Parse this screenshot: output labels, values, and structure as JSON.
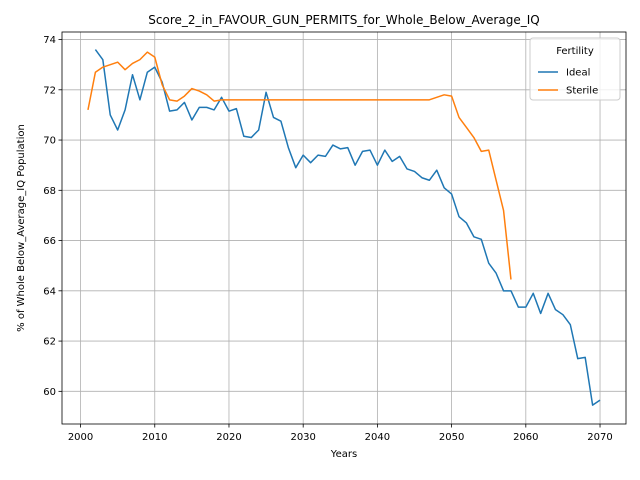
{
  "chart_data": {
    "type": "line",
    "title": "Score_2_in_FAVOUR_GUN_PERMITS_for_Whole_Below_Average_IQ",
    "xlabel": "Years",
    "ylabel": "% of Whole Below_Average_IQ Population",
    "xlim": [
      1997.5,
      2073.5
    ],
    "ylim": [
      58.7,
      74.3
    ],
    "xticks": [
      2000,
      2010,
      2020,
      2030,
      2040,
      2050,
      2060,
      2070
    ],
    "yticks": [
      60,
      62,
      64,
      66,
      68,
      70,
      72,
      74
    ],
    "grid": true,
    "legend": {
      "title": "Fertility",
      "placement": "top-right"
    },
    "series": [
      {
        "name": "Ideal",
        "color": "#1f77b4",
        "points": [
          [
            2002,
            73.6
          ],
          [
            2003,
            73.2
          ],
          [
            2004,
            71.0
          ],
          [
            2005,
            70.4
          ],
          [
            2006,
            71.2
          ],
          [
            2007,
            72.6
          ],
          [
            2008,
            71.6
          ],
          [
            2009,
            72.7
          ],
          [
            2010,
            72.9
          ],
          [
            2011,
            72.3
          ],
          [
            2012,
            71.15
          ],
          [
            2013,
            71.2
          ],
          [
            2014,
            71.5
          ],
          [
            2015,
            70.8
          ],
          [
            2016,
            71.3
          ],
          [
            2017,
            71.3
          ],
          [
            2018,
            71.2
          ],
          [
            2019,
            71.7
          ],
          [
            2020,
            71.15
          ],
          [
            2021,
            71.25
          ],
          [
            2022,
            70.15
          ],
          [
            2023,
            70.1
          ],
          [
            2024,
            70.4
          ],
          [
            2025,
            71.9
          ],
          [
            2026,
            70.9
          ],
          [
            2027,
            70.75
          ],
          [
            2028,
            69.7
          ],
          [
            2029,
            68.9
          ],
          [
            2030,
            69.4
          ],
          [
            2031,
            69.1
          ],
          [
            2032,
            69.4
          ],
          [
            2033,
            69.35
          ],
          [
            2034,
            69.8
          ],
          [
            2035,
            69.65
          ],
          [
            2036,
            69.7
          ],
          [
            2037,
            69.0
          ],
          [
            2038,
            69.55
          ],
          [
            2039,
            69.6
          ],
          [
            2040,
            69.0
          ],
          [
            2041,
            69.6
          ],
          [
            2042,
            69.15
          ],
          [
            2043,
            69.35
          ],
          [
            2044,
            68.85
          ],
          [
            2045,
            68.75
          ],
          [
            2046,
            68.5
          ],
          [
            2047,
            68.4
          ],
          [
            2048,
            68.8
          ],
          [
            2049,
            68.1
          ],
          [
            2050,
            67.85
          ],
          [
            2051,
            66.95
          ],
          [
            2052,
            66.7
          ],
          [
            2053,
            66.15
          ],
          [
            2054,
            66.05
          ],
          [
            2055,
            65.1
          ],
          [
            2056,
            64.7
          ],
          [
            2057,
            64.0
          ],
          [
            2058,
            64.0
          ],
          [
            2059,
            63.35
          ],
          [
            2060,
            63.35
          ],
          [
            2061,
            63.9
          ],
          [
            2062,
            63.1
          ],
          [
            2063,
            63.9
          ],
          [
            2064,
            63.25
          ],
          [
            2065,
            63.05
          ],
          [
            2066,
            62.65
          ],
          [
            2067,
            61.3
          ],
          [
            2068,
            61.35
          ],
          [
            2069,
            59.45
          ],
          [
            2070,
            59.65
          ]
        ]
      },
      {
        "name": "Sterile",
        "color": "#ff7f0e",
        "points": [
          [
            2001,
            71.2
          ],
          [
            2002,
            72.7
          ],
          [
            2003,
            72.9
          ],
          [
            2004,
            73.0
          ],
          [
            2005,
            73.1
          ],
          [
            2006,
            72.8
          ],
          [
            2007,
            73.05
          ],
          [
            2008,
            73.2
          ],
          [
            2009,
            73.5
          ],
          [
            2010,
            73.3
          ],
          [
            2011,
            72.2
          ],
          [
            2012,
            71.6
          ],
          [
            2013,
            71.55
          ],
          [
            2014,
            71.75
          ],
          [
            2015,
            72.05
          ],
          [
            2016,
            71.95
          ],
          [
            2017,
            71.8
          ],
          [
            2018,
            71.55
          ],
          [
            2019,
            71.6
          ],
          [
            2020,
            71.6
          ],
          [
            2025,
            71.6
          ],
          [
            2030,
            71.6
          ],
          [
            2035,
            71.6
          ],
          [
            2040,
            71.6
          ],
          [
            2045,
            71.6
          ],
          [
            2047,
            71.6
          ],
          [
            2048,
            71.7
          ],
          [
            2049,
            71.8
          ],
          [
            2050,
            71.75
          ],
          [
            2051,
            70.9
          ],
          [
            2052,
            70.5
          ],
          [
            2053,
            70.1
          ],
          [
            2054,
            69.55
          ],
          [
            2055,
            69.6
          ],
          [
            2056,
            68.4
          ],
          [
            2057,
            67.2
          ],
          [
            2058,
            64.45
          ]
        ]
      }
    ]
  }
}
